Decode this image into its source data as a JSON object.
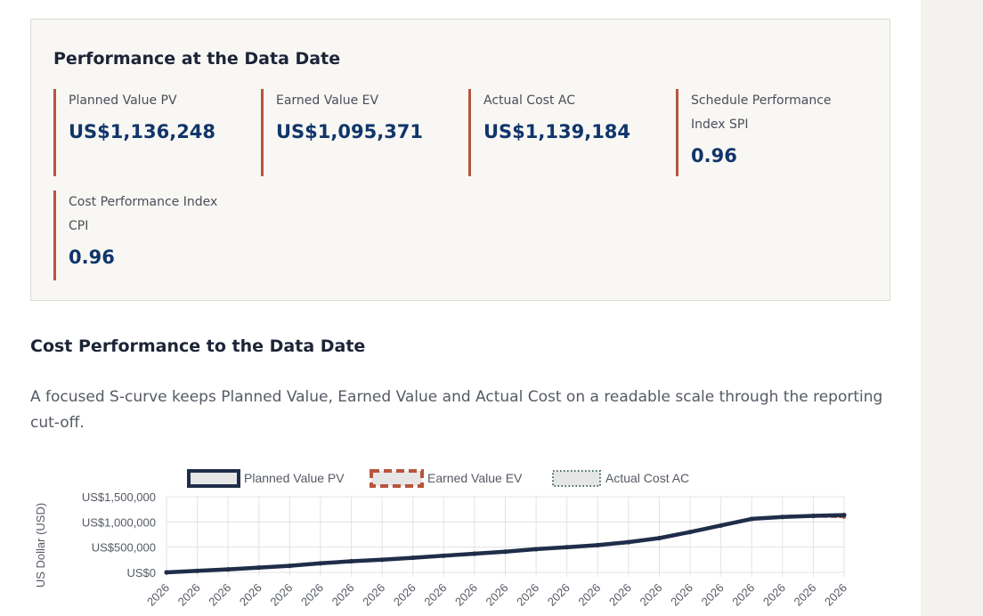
{
  "performance": {
    "title": "Performance at the Data Date",
    "metrics": [
      {
        "label": "Planned Value PV",
        "value": "US$1,136,248"
      },
      {
        "label": "Earned Value EV",
        "value": "US$1,095,371"
      },
      {
        "label": "Actual Cost AC",
        "value": "US$1,139,184"
      },
      {
        "label": "Schedule Performance Index SPI",
        "value": "0.96"
      },
      {
        "label": "Cost Performance Index CPI",
        "value": "0.96"
      }
    ]
  },
  "section": {
    "title": "Cost Performance to the Data Date",
    "description": "A focused S-curve keeps Planned Value, Earned Value and Actual Cost on a readable scale through the reporting cut-off."
  },
  "colors": {
    "accent": "#b8543d",
    "value_text": "#10356a",
    "pv_line": "#1f2d4a",
    "ev_line": "#b8543d",
    "ac_line": "#3f6b4f"
  },
  "chart_data": {
    "type": "line",
    "ylabel": "US Dollar (USD)",
    "ylim": [
      0,
      1500000
    ],
    "y_ticks": [
      "US$1,500,000",
      "US$1,000,000",
      "US$500,000",
      "US$0"
    ],
    "y_tick_values": [
      1500000,
      1000000,
      500000,
      0
    ],
    "categories": [
      "2026",
      "2026",
      "2026",
      "2026",
      "2026",
      "2026",
      "2026",
      "2026",
      "2026",
      "2026",
      "2026",
      "2026",
      "2026",
      "2026",
      "2026",
      "2026",
      "2026",
      "2026",
      "2026",
      "2026",
      "2026",
      "2026",
      "2026"
    ],
    "grid": true,
    "legend_position": "top",
    "series": [
      {
        "name": "Planned Value PV",
        "color": "#1f2d4a",
        "style": "solid",
        "values": [
          0,
          30000,
          60000,
          95000,
          130000,
          180000,
          220000,
          250000,
          290000,
          330000,
          370000,
          410000,
          460000,
          500000,
          540000,
          600000,
          680000,
          800000,
          930000,
          1060000,
          1100000,
          1120000,
          1136248
        ]
      },
      {
        "name": "Earned Value EV",
        "color": "#b8543d",
        "style": "dashed",
        "values": [
          0,
          30000,
          60000,
          95000,
          130000,
          180000,
          220000,
          250000,
          290000,
          330000,
          370000,
          410000,
          460000,
          500000,
          540000,
          600000,
          680000,
          800000,
          930000,
          1060000,
          1090000,
          1110000,
          1095371
        ]
      },
      {
        "name": "Actual Cost AC",
        "color": "#3f6b4f",
        "style": "dotted",
        "values": [
          0,
          30000,
          60000,
          95000,
          130000,
          180000,
          220000,
          250000,
          290000,
          330000,
          370000,
          410000,
          460000,
          500000,
          540000,
          600000,
          680000,
          800000,
          930000,
          1060000,
          1100000,
          1125000,
          1139184
        ]
      }
    ]
  }
}
